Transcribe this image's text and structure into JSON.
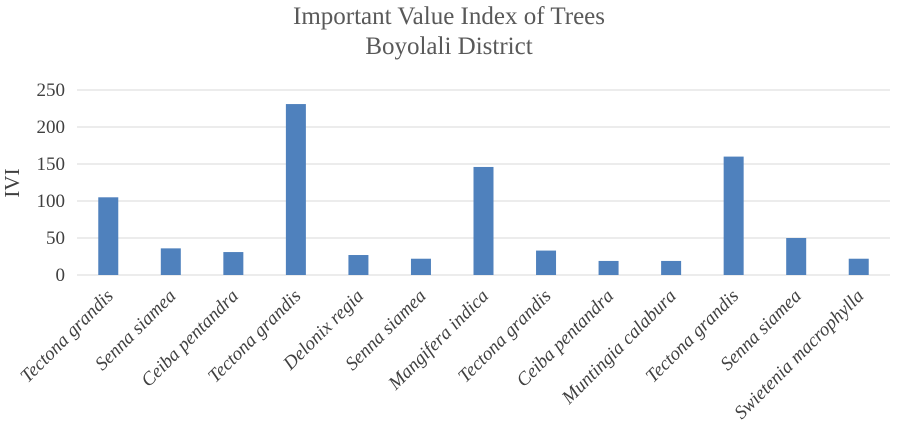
{
  "chart_data": {
    "type": "bar",
    "title": [
      "Important Value Index of Trees",
      "Boyolali District"
    ],
    "xlabel": "",
    "ylabel": "IVI",
    "ylim": [
      0,
      250
    ],
    "yticks": [
      0,
      50,
      100,
      150,
      200,
      250
    ],
    "grid": true,
    "legend": "none",
    "bar_color": "#4f81bd",
    "categories": [
      "Tectona grandis",
      "Senna siamea",
      "Ceiba pentandra",
      "Tectona grandis",
      "Delonix regia",
      "Senna siamea",
      "Mangifera indica",
      "Tectona grandis",
      "Ceiba pentandra",
      "Muntingia calabura",
      "Tectona grandis",
      "Senna siamea",
      "Swietenia macrophylla"
    ],
    "values": [
      105,
      36,
      31,
      231,
      27,
      22,
      146,
      33,
      19,
      19,
      160,
      50,
      22
    ]
  }
}
